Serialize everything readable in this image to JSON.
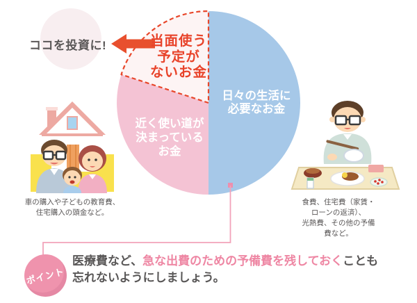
{
  "chart_data": {
    "type": "pie",
    "title": "",
    "start": "top",
    "direction": "clockwise",
    "legend": false,
    "slices": [
      {
        "name": "日々の生活に必要なお金",
        "label": "日々の生活に\n必要なお金",
        "value": 50,
        "color": "#a6c8e8",
        "label_color": "#ffffff"
      },
      {
        "name": "近く使い道が決まっているお金",
        "label": "近く使い道が\n決まっている\nお金",
        "value": 30,
        "color": "#f4c3d4",
        "label_color": "#ffffff"
      },
      {
        "name": "当面使う予定がないお金",
        "label": "当面使う\n予定が\nないお金",
        "value": 20,
        "color": "#fdf4f4",
        "label_color": "#e8432a",
        "border": {
          "color": "#e8472b",
          "width": 2.2,
          "dash": "6 4"
        }
      }
    ]
  },
  "annotations": {
    "invest_note": "ココを投資に!",
    "arrow_color": "#e8502e",
    "leader_color": "#f2a3ba",
    "leader_dot_color": "#ed8fae"
  },
  "captions": {
    "family": "車の購入や子どもの教育費、\n住宅購入の頭金など。",
    "meal": "食費、住宅費（家賃・ローンの返済）、\n光熱費、その他の予備費など。"
  },
  "point": {
    "badge": "ポイント",
    "badge_color": "#ef93ad",
    "highlight_color": "#ee86a3",
    "text_before": "医療費など、",
    "text_highlight": "急な出費のための予備費を残しておく",
    "text_after": "ことも",
    "text_line2": "忘れないようにしましょう。"
  }
}
